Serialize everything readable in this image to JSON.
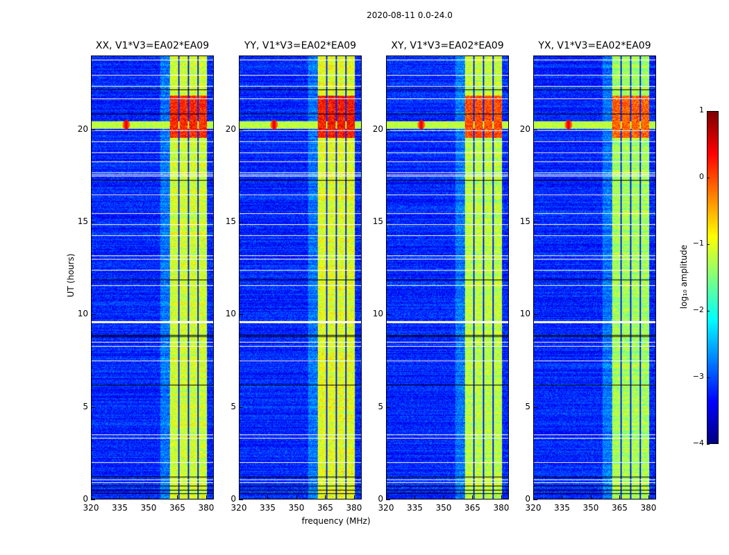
{
  "suptitle": "2020-08-11 0.0-24.0",
  "chart_data": {
    "type": "heatmap",
    "title": "2020-08-11 0.0-24.0",
    "xlabel": "frequency (MHz)",
    "ylabel": "UT (hours)",
    "xlim": [
      320,
      384
    ],
    "ylim": [
      0,
      24
    ],
    "xticks": [
      "320",
      "335",
      "350",
      "365",
      "380"
    ],
    "xtick_values": [
      320,
      335,
      350,
      365,
      380
    ],
    "yticks": [
      "0",
      "5",
      "10",
      "15",
      "20"
    ],
    "ytick_values": [
      0,
      5,
      10,
      15,
      20
    ],
    "panels": [
      {
        "title": "XX, V1*V3=EA02*EA09",
        "band_level": -1.1,
        "hot_level": 0.2
      },
      {
        "title": "YY, V1*V3=EA02*EA09",
        "band_level": -1.0,
        "hot_level": 0.3
      },
      {
        "title": "XY, V1*V3=EA02*EA09",
        "band_level": -1.2,
        "hot_level": 0.0
      },
      {
        "title": "YX, V1*V3=EA02*EA09",
        "band_level": -1.3,
        "hot_level": -0.1
      }
    ],
    "background_level": -3.2,
    "rfi_band_mhz": [
      361,
      380.4
    ],
    "band_dividers_mhz": [
      365.7,
      370.8,
      376
    ],
    "hot_interval_hours": [
      19.6,
      21.9
    ],
    "rfi_line": {
      "hour": 20.3,
      "level": -1.2,
      "peak_mhz": 338,
      "peak_level": 0.6
    },
    "flagged_white_hours": [
      0.9,
      1.05,
      2.0,
      3.3,
      3.5,
      7.5,
      8.3,
      8.5,
      9.55,
      9.6,
      9.65,
      11.6,
      12.4,
      13.0,
      13.2,
      14.3,
      14.9,
      15.5,
      16.5,
      17.5,
      17.6,
      17.7,
      18.3,
      18.8,
      19.4,
      20.0,
      21.7,
      22.4,
      23.0,
      23.8
    ],
    "flagged_black_hours": [
      0.3,
      0.5,
      0.7,
      1.2,
      6.2,
      8.8,
      8.9,
      11.9,
      17.3,
      20.9,
      22.2
    ],
    "colorbar": {
      "label": "log₁₀ amplitude",
      "ticks": [
        "1",
        "0",
        "−1",
        "−2",
        "−3",
        "−4"
      ],
      "tick_values": [
        1,
        0,
        -1,
        -2,
        -3,
        -4
      ],
      "range": [
        -4,
        1
      ],
      "colormap": "jet"
    }
  }
}
